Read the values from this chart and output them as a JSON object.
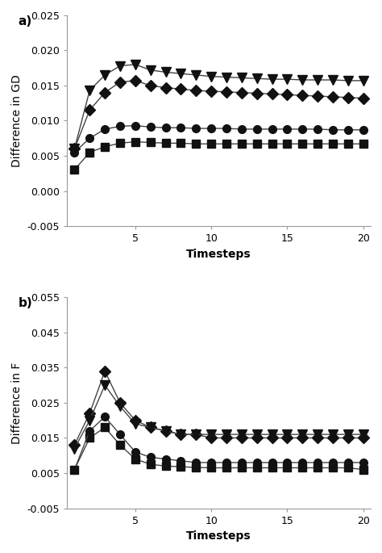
{
  "panel_a": {
    "ylabel": "Difference in GD",
    "xlabel": "Timesteps",
    "label": "a)",
    "ylim": [
      -0.005,
      0.025
    ],
    "yticks": [
      -0.005,
      0.0,
      0.005,
      0.01,
      0.015,
      0.02,
      0.025
    ],
    "xlim": [
      0.5,
      20.5
    ],
    "xticks": [
      5,
      10,
      15,
      20
    ],
    "series": {
      "square": {
        "x": [
          1,
          2,
          3,
          4,
          5,
          6,
          7,
          8,
          9,
          10,
          11,
          12,
          13,
          14,
          15,
          16,
          17,
          18,
          19,
          20
        ],
        "y": [
          0.003,
          0.0055,
          0.0063,
          0.0068,
          0.007,
          0.0069,
          0.0068,
          0.0068,
          0.0067,
          0.0067,
          0.0067,
          0.0067,
          0.0067,
          0.0067,
          0.0067,
          0.0067,
          0.0067,
          0.0067,
          0.0067,
          0.0067
        ],
        "marker": "s",
        "markersize": 7
      },
      "circle": {
        "x": [
          1,
          2,
          3,
          4,
          5,
          6,
          7,
          8,
          9,
          10,
          11,
          12,
          13,
          14,
          15,
          16,
          17,
          18,
          19,
          20
        ],
        "y": [
          0.0055,
          0.0075,
          0.0088,
          0.0092,
          0.0093,
          0.0091,
          0.009,
          0.009,
          0.0089,
          0.0089,
          0.0089,
          0.0088,
          0.0088,
          0.0088,
          0.0088,
          0.0088,
          0.0088,
          0.0087,
          0.0087,
          0.0087
        ],
        "marker": "o",
        "markersize": 7
      },
      "diamond": {
        "x": [
          1,
          2,
          3,
          4,
          5,
          6,
          7,
          8,
          9,
          10,
          11,
          12,
          13,
          14,
          15,
          16,
          17,
          18,
          19,
          20
        ],
        "y": [
          0.006,
          0.0115,
          0.014,
          0.0155,
          0.0157,
          0.015,
          0.0147,
          0.0145,
          0.0143,
          0.0142,
          0.0141,
          0.014,
          0.0139,
          0.0138,
          0.0137,
          0.0136,
          0.0135,
          0.0134,
          0.0133,
          0.0132
        ],
        "marker": "D",
        "markersize": 7
      },
      "triangle_down": {
        "x": [
          1,
          2,
          3,
          4,
          5,
          6,
          7,
          8,
          9,
          10,
          11,
          12,
          13,
          14,
          15,
          16,
          17,
          18,
          19,
          20
        ],
        "y": [
          0.006,
          0.0143,
          0.0165,
          0.0178,
          0.018,
          0.0172,
          0.0169,
          0.0167,
          0.0165,
          0.0163,
          0.0162,
          0.0161,
          0.016,
          0.0159,
          0.0159,
          0.0158,
          0.0158,
          0.0158,
          0.0157,
          0.0157
        ],
        "marker": "v",
        "markersize": 8
      }
    }
  },
  "panel_b": {
    "ylabel": "Difference in F",
    "xlabel": "Timesteps",
    "label": "b)",
    "ylim": [
      -0.005,
      0.055
    ],
    "yticks": [
      -0.005,
      0.005,
      0.015,
      0.025,
      0.035,
      0.045,
      0.055
    ],
    "xlim": [
      0.5,
      20.5
    ],
    "xticks": [
      5,
      10,
      15,
      20
    ],
    "series": {
      "square": {
        "x": [
          1,
          2,
          3,
          4,
          5,
          6,
          7,
          8,
          9,
          10,
          11,
          12,
          13,
          14,
          15,
          16,
          17,
          18,
          19,
          20
        ],
        "y": [
          0.006,
          0.015,
          0.018,
          0.013,
          0.009,
          0.0075,
          0.007,
          0.0068,
          0.0066,
          0.0065,
          0.0065,
          0.0065,
          0.0065,
          0.0065,
          0.0065,
          0.0065,
          0.0065,
          0.0065,
          0.0065,
          0.006
        ],
        "marker": "s",
        "markersize": 7
      },
      "circle": {
        "x": [
          1,
          2,
          3,
          4,
          5,
          6,
          7,
          8,
          9,
          10,
          11,
          12,
          13,
          14,
          15,
          16,
          17,
          18,
          19,
          20
        ],
        "y": [
          0.006,
          0.017,
          0.021,
          0.016,
          0.011,
          0.0095,
          0.009,
          0.0085,
          0.008,
          0.008,
          0.008,
          0.008,
          0.008,
          0.008,
          0.008,
          0.008,
          0.008,
          0.008,
          0.008,
          0.008
        ],
        "marker": "o",
        "markersize": 7
      },
      "diamond": {
        "x": [
          1,
          2,
          3,
          4,
          5,
          6,
          7,
          8,
          9,
          10,
          11,
          12,
          13,
          14,
          15,
          16,
          17,
          18,
          19,
          20
        ],
        "y": [
          0.013,
          0.022,
          0.034,
          0.025,
          0.02,
          0.018,
          0.017,
          0.016,
          0.016,
          0.015,
          0.015,
          0.015,
          0.015,
          0.015,
          0.015,
          0.015,
          0.015,
          0.015,
          0.015,
          0.015
        ],
        "marker": "D",
        "markersize": 7
      },
      "triangle_down": {
        "x": [
          1,
          2,
          3,
          4,
          5,
          6,
          7,
          8,
          9,
          10,
          11,
          12,
          13,
          14,
          15,
          16,
          17,
          18,
          19,
          20
        ],
        "y": [
          0.012,
          0.02,
          0.03,
          0.024,
          0.019,
          0.018,
          0.017,
          0.016,
          0.016,
          0.016,
          0.016,
          0.016,
          0.016,
          0.016,
          0.016,
          0.016,
          0.016,
          0.016,
          0.016,
          0.016
        ],
        "marker": "v",
        "markersize": 8
      }
    }
  },
  "line_color": "#444444",
  "marker_color": "#111111",
  "background_color": "#ffffff",
  "tick_font_size": 9,
  "label_font_size": 10,
  "panel_label_fontsize": 11
}
